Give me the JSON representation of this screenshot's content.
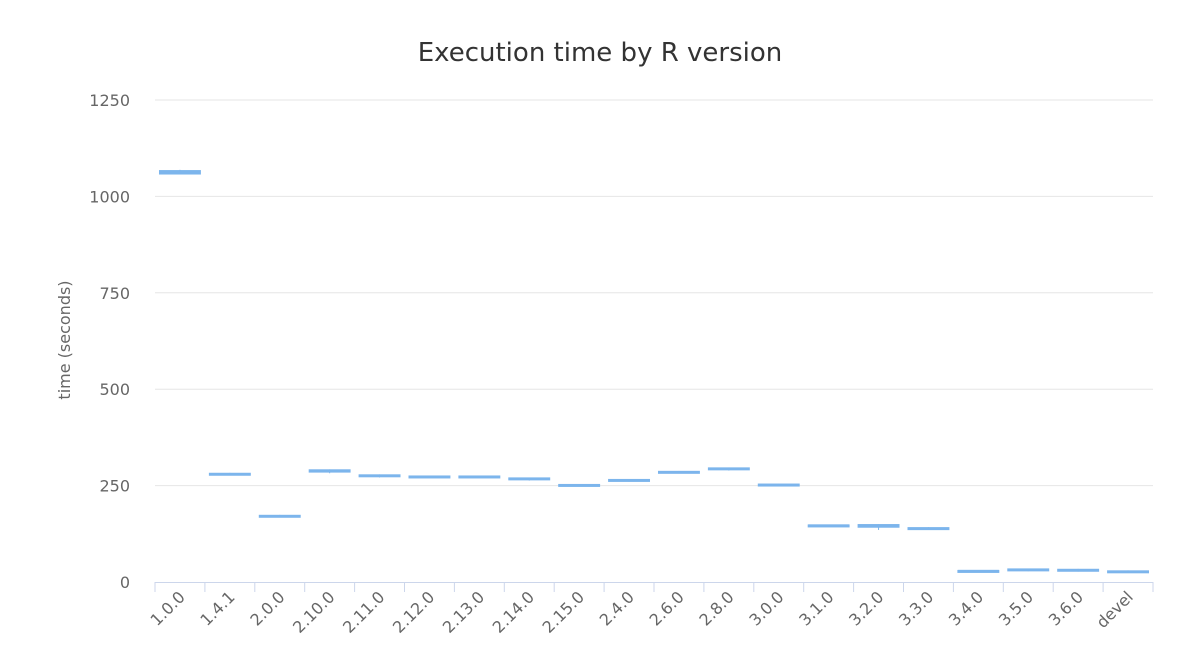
{
  "chart_data": {
    "type": "boxplot",
    "title": "Execution time by R version",
    "ylabel": "time (seconds)",
    "xlabel": "",
    "ylim": [
      0,
      1250
    ],
    "yticks": [
      0,
      250,
      500,
      750,
      1000,
      1250
    ],
    "grid": true,
    "series_color": "#7cb5ec",
    "categories": [
      "1.0.0",
      "1.4.1",
      "2.0.0",
      "2.10.0",
      "2.11.0",
      "2.12.0",
      "2.13.0",
      "2.14.0",
      "2.15.0",
      "2.4.0",
      "2.6.0",
      "2.8.0",
      "3.0.0",
      "3.1.0",
      "3.2.0",
      "3.3.0",
      "3.4.0",
      "3.5.0",
      "3.6.0",
      "devel"
    ],
    "boxes": [
      {
        "low": 1058,
        "q1": 1058,
        "median": 1062,
        "q3": 1067,
        "high": 1069
      },
      {
        "low": 277,
        "q1": 278,
        "median": 280,
        "q3": 282,
        "high": 283
      },
      {
        "low": 168,
        "q1": 169,
        "median": 171,
        "q3": 173,
        "high": 174
      },
      {
        "low": 282,
        "q1": 285,
        "median": 288,
        "q3": 291,
        "high": 292
      },
      {
        "low": 271,
        "q1": 273,
        "median": 275,
        "q3": 278,
        "high": 279
      },
      {
        "low": 270,
        "q1": 271,
        "median": 273,
        "q3": 275,
        "high": 276
      },
      {
        "low": 270,
        "q1": 271,
        "median": 273,
        "q3": 275,
        "high": 276
      },
      {
        "low": 263,
        "q1": 265,
        "median": 267,
        "q3": 270,
        "high": 271
      },
      {
        "low": 248,
        "q1": 249,
        "median": 251,
        "q3": 253,
        "high": 254
      },
      {
        "low": 260,
        "q1": 262,
        "median": 264,
        "q3": 266,
        "high": 267
      },
      {
        "low": 282,
        "q1": 283,
        "median": 285,
        "q3": 287,
        "high": 288
      },
      {
        "low": 289,
        "q1": 291,
        "median": 293,
        "q3": 296,
        "high": 297
      },
      {
        "low": 248,
        "q1": 250,
        "median": 252,
        "q3": 254,
        "high": 255
      },
      {
        "low": 144,
        "q1": 145,
        "median": 147,
        "q3": 148,
        "high": 149
      },
      {
        "low": 135,
        "q1": 142,
        "median": 145,
        "q3": 149,
        "high": 150
      },
      {
        "low": 136,
        "q1": 137,
        "median": 139,
        "q3": 141,
        "high": 142
      },
      {
        "low": 27,
        "q1": 28,
        "median": 29,
        "q3": 30,
        "high": 31
      },
      {
        "low": 28,
        "q1": 30,
        "median": 32,
        "q3": 34,
        "high": 35
      },
      {
        "low": 27,
        "q1": 28,
        "median": 30,
        "q3": 33,
        "high": 34
      },
      {
        "low": 24,
        "q1": 25,
        "median": 27,
        "q3": 29,
        "high": 30
      }
    ]
  }
}
